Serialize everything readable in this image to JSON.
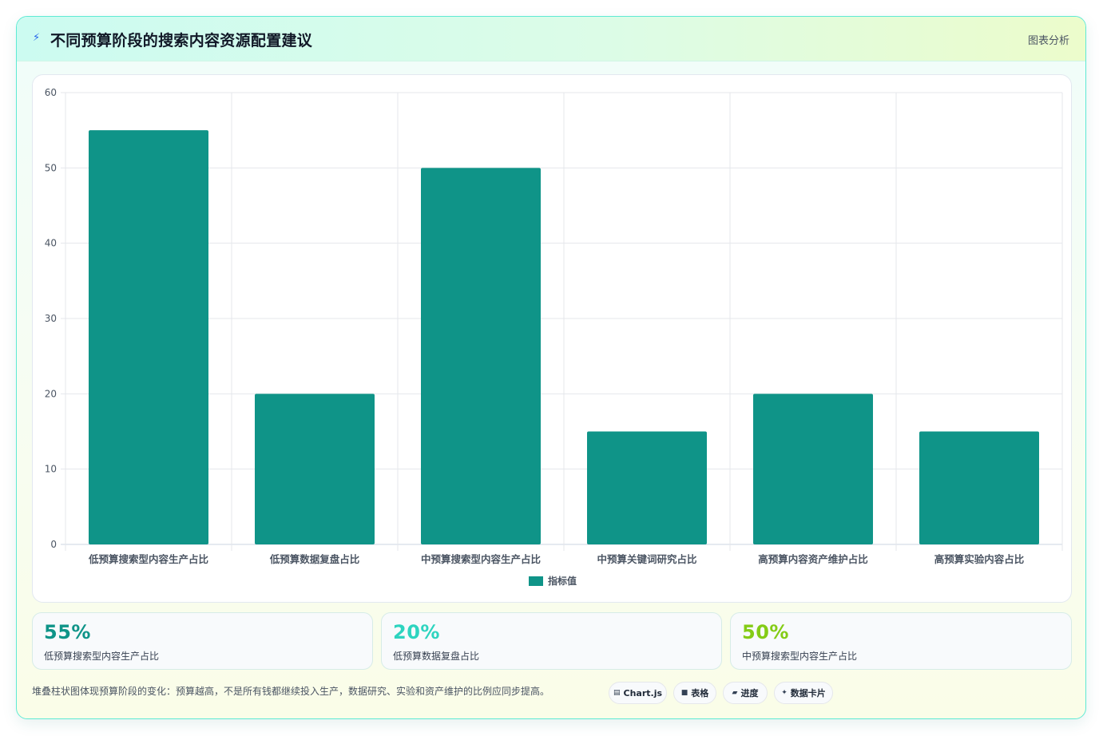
{
  "header": {
    "icon": "lightning-icon",
    "title": "不同预算阶段的搜索内容资源配置建议",
    "tag": "图表分析"
  },
  "chart_data": {
    "type": "bar",
    "categories": [
      "低预算搜索型内容生产占比",
      "低预算数据复盘占比",
      "中预算搜索型内容生产占比",
      "中预算关键词研究占比",
      "高预算内容资产维护占比",
      "高预算实验内容占比"
    ],
    "series": [
      {
        "name": "指标值",
        "values": [
          55,
          20,
          50,
          15,
          20,
          15
        ]
      }
    ],
    "ylim": [
      0,
      60
    ],
    "yticks": [
      0,
      10,
      20,
      30,
      40,
      50,
      60
    ],
    "grid": true,
    "legend": "bottom",
    "color": "#0f9488"
  },
  "stats": [
    {
      "value": "55%",
      "label": "低预算搜索型内容生产占比",
      "color": "#0f9488"
    },
    {
      "value": "20%",
      "label": "低预算数据复盘占比",
      "color": "#2dd4bf"
    },
    {
      "value": "50%",
      "label": "中预算搜索型内容生产占比",
      "color": "#84cc16"
    }
  ],
  "footer": {
    "note": "堆叠柱状图体现预算阶段的变化：预算越高，不是所有钱都继续投入生产，数据研究、实验和资产维护的比例应同步提高。",
    "chips": [
      {
        "icon": "chart-icon",
        "glyph": "▤",
        "label": "Chart.js"
      },
      {
        "icon": "table-icon",
        "glyph": "■",
        "label": "表格"
      },
      {
        "icon": "progress-icon",
        "glyph": "▰",
        "label": "进度"
      },
      {
        "icon": "sparkle-icon",
        "glyph": "✦",
        "label": "数据卡片"
      }
    ]
  }
}
